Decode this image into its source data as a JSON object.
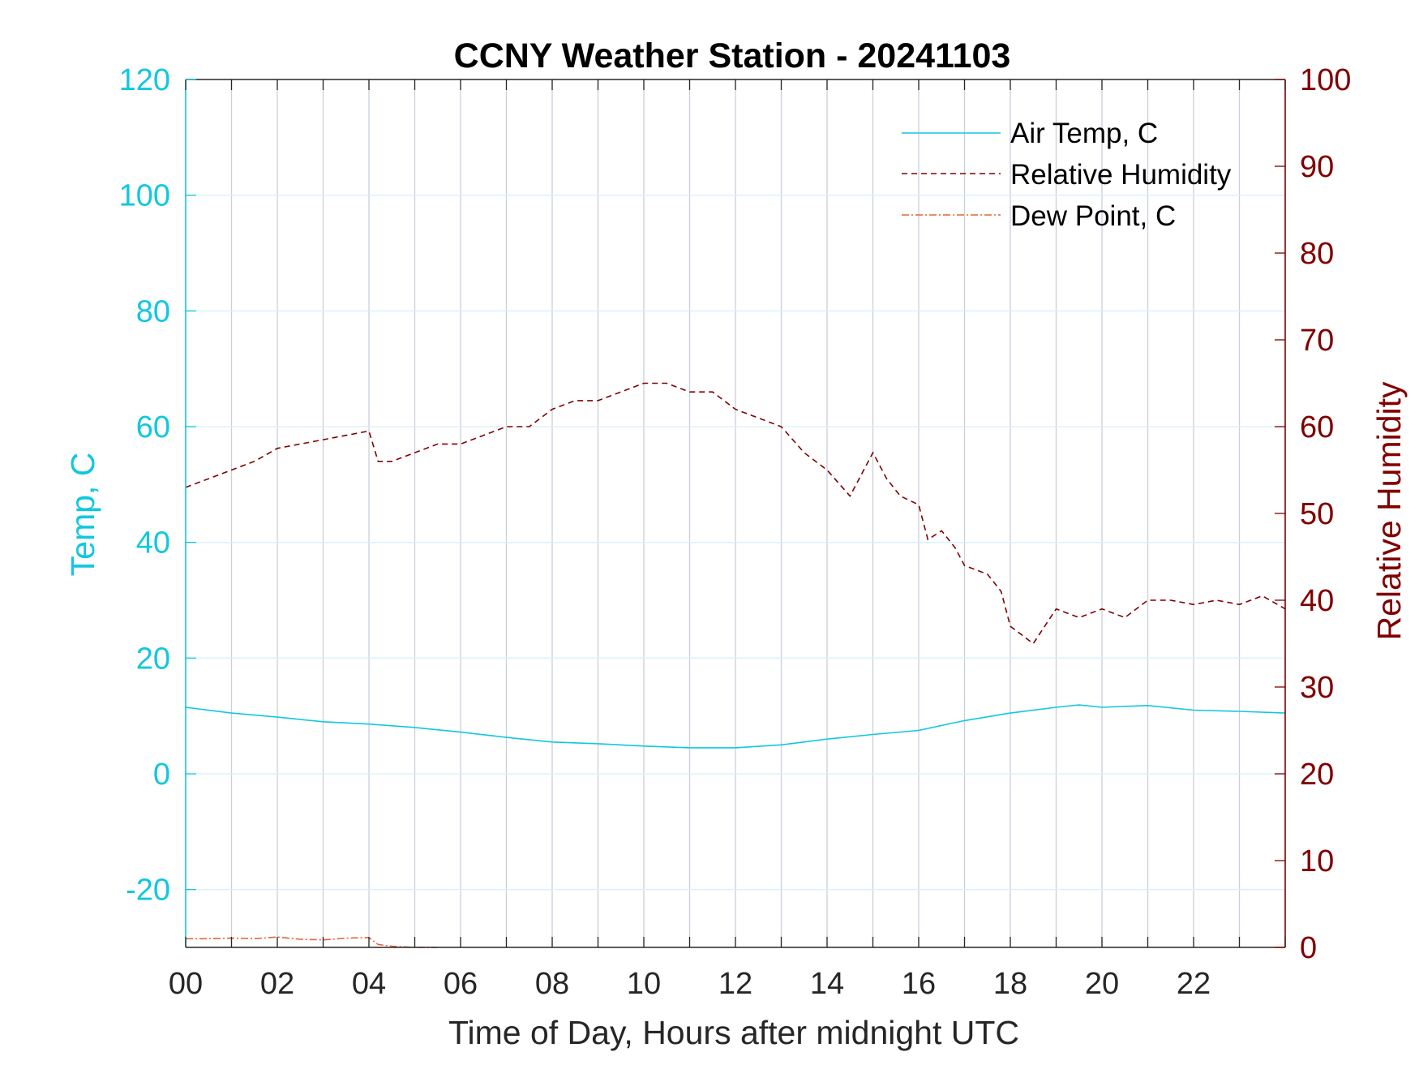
{
  "chart_data": {
    "type": "line",
    "title": "CCNY Weather Station - 20241103",
    "xlabel": "Time of Day, Hours after midnight UTC",
    "ylabel_left": "Temp, C",
    "ylabel_right": "Relative Humidity",
    "xlim": [
      0,
      24
    ],
    "ylim_left": [
      -30,
      120
    ],
    "ylim_right": [
      0,
      100
    ],
    "x_ticks": [
      0,
      2,
      4,
      6,
      8,
      10,
      12,
      14,
      16,
      18,
      20,
      22
    ],
    "x_tick_labels": [
      "00",
      "02",
      "04",
      "06",
      "08",
      "10",
      "12",
      "14",
      "16",
      "18",
      "20",
      "22"
    ],
    "y_left_ticks": [
      -20,
      0,
      20,
      40,
      60,
      80,
      100,
      120
    ],
    "y_left_tick_labels": [
      "-20",
      "0",
      "20",
      "40",
      "60",
      "80",
      "100",
      "120"
    ],
    "y_right_ticks": [
      0,
      10,
      20,
      30,
      40,
      50,
      60,
      70,
      80,
      90,
      100
    ],
    "y_right_tick_labels": [
      "0",
      "10",
      "20",
      "30",
      "40",
      "50",
      "60",
      "70",
      "80",
      "90",
      "100"
    ],
    "grid": true,
    "legend_position": "top-right",
    "colors": {
      "air_temp": "#12c7e0",
      "humidity": "#800000",
      "dew_point": "#e0673a",
      "left_axis": "#12c7e0",
      "right_axis": "#800000",
      "grid_vertical": "#c9d0da",
      "grid_horizontal": "#d6f1f8"
    },
    "series": [
      {
        "name": "Air Temp, C",
        "axis": "left",
        "style": "solid",
        "x": [
          0,
          1,
          2,
          3,
          4,
          5,
          6,
          7,
          8,
          9,
          10,
          11,
          12,
          13,
          14,
          15,
          16,
          17,
          18,
          19,
          19.5,
          20,
          21,
          22,
          23,
          24
        ],
        "values": [
          11.5,
          10.5,
          9.8,
          9.0,
          8.6,
          8.0,
          7.2,
          6.3,
          5.5,
          5.2,
          4.8,
          4.5,
          4.5,
          5.0,
          6.0,
          6.8,
          7.5,
          9.2,
          10.5,
          11.5,
          11.9,
          11.5,
          11.8,
          11.0,
          10.8,
          10.5
        ]
      },
      {
        "name": "Relative Humidity",
        "axis": "right",
        "style": "dashed",
        "x": [
          0,
          0.5,
          1,
          1.5,
          2,
          2.5,
          3,
          3.5,
          4,
          4.2,
          4.5,
          5,
          5.5,
          6,
          6.5,
          7,
          7.5,
          8,
          8.5,
          9,
          9.5,
          10,
          10.5,
          11,
          11.5,
          12,
          12.5,
          13,
          13.5,
          14,
          14.5,
          15,
          15.3,
          15.6,
          16,
          16.2,
          16.5,
          16.8,
          17,
          17.5,
          17.8,
          18,
          18.5,
          19,
          19.5,
          20,
          20.5,
          21,
          21.5,
          22,
          22.5,
          23,
          23.5,
          24
        ],
        "values": [
          53,
          54,
          55,
          56,
          57.5,
          58,
          58.5,
          59,
          59.5,
          56,
          56,
          57,
          58,
          58,
          59,
          60,
          60,
          62,
          63,
          63,
          64,
          65,
          65,
          64,
          64,
          62,
          61,
          60,
          57,
          55,
          52,
          57,
          54,
          52,
          51,
          47,
          48,
          46,
          44,
          43,
          41,
          37,
          35,
          39,
          38,
          39,
          38,
          40,
          40,
          39.5,
          40,
          39.5,
          40.5,
          39
        ]
      },
      {
        "name": "Dew Point, C",
        "axis": "left",
        "style": "dashdot",
        "x": [
          0,
          0.5,
          1,
          1.5,
          2,
          2.5,
          3,
          3.5,
          4,
          4.2,
          4.5,
          5,
          5.5
        ],
        "values": [
          -28.5,
          -28.5,
          -28.4,
          -28.5,
          -28.2,
          -28.6,
          -28.7,
          -28.4,
          -28.3,
          -29.5,
          -29.8,
          -30,
          -30
        ]
      }
    ]
  }
}
